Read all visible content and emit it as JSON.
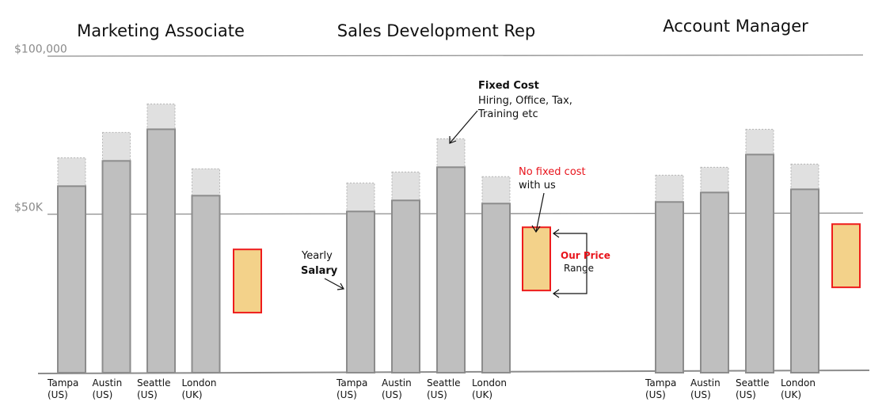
{
  "chart_data": {
    "type": "bar",
    "y_ticks": [
      {
        "value": 100000,
        "label": "$100,000"
      },
      {
        "value": 50000,
        "label": "$50K"
      }
    ],
    "groups": [
      {
        "title": "Marketing Associate",
        "categories": [
          {
            "line1": "Tampa",
            "line2": "(US)",
            "salary": 59000,
            "total": 68000
          },
          {
            "line1": "Austin",
            "line2": "(US)",
            "salary": 67000,
            "total": 76000
          },
          {
            "line1": "Seattle",
            "line2": "(US)",
            "salary": 77000,
            "total": 85000
          },
          {
            "line1": "London",
            "line2": "(UK)",
            "salary": 56000,
            "total": 64500
          }
        ],
        "price_range": [
          19000,
          39000
        ]
      },
      {
        "title": "Sales Development Rep",
        "categories": [
          {
            "line1": "Tampa",
            "line2": "(US)",
            "salary": 51000,
            "total": 60000
          },
          {
            "line1": "Austin",
            "line2": "(US)",
            "salary": 54500,
            "total": 63500
          },
          {
            "line1": "Seattle",
            "line2": "(US)",
            "salary": 65000,
            "total": 74000
          },
          {
            "line1": "London",
            "line2": "(UK)",
            "salary": 53500,
            "total": 62000
          }
        ],
        "price_range": [
          26000,
          46000
        ]
      },
      {
        "title": "Account Manager",
        "categories": [
          {
            "line1": "Tampa",
            "line2": "(US)",
            "salary": 54000,
            "total": 62500
          },
          {
            "line1": "Austin",
            "line2": "(US)",
            "salary": 57000,
            "total": 65000
          },
          {
            "line1": "Seattle",
            "line2": "(US)",
            "salary": 69000,
            "total": 77000
          },
          {
            "line1": "London",
            "line2": "(UK)",
            "salary": 58000,
            "total": 66000
          }
        ],
        "price_range": [
          27000,
          47000
        ]
      }
    ],
    "colors": {
      "salary_fill": "#bfbfbf",
      "salary_stroke": "#8c8c8c",
      "fixed_fill": "#e0e0e0",
      "fixed_stroke": "#b5b5b5",
      "price_fill": "#f3d28a",
      "price_stroke": "#ee1c1c",
      "gridline": "#8c8c8c",
      "baseline": "#8c8c8c"
    }
  },
  "annotations": {
    "fixed_cost_title": "Fixed Cost",
    "fixed_cost_line1": "Hiring, Office, Tax,",
    "fixed_cost_line2": "Training etc",
    "no_fixed_line1": "No fixed cost",
    "no_fixed_line2": "with us",
    "yearly": "Yearly",
    "salary": "Salary",
    "our_price": "Our Price",
    "range": "Range"
  }
}
